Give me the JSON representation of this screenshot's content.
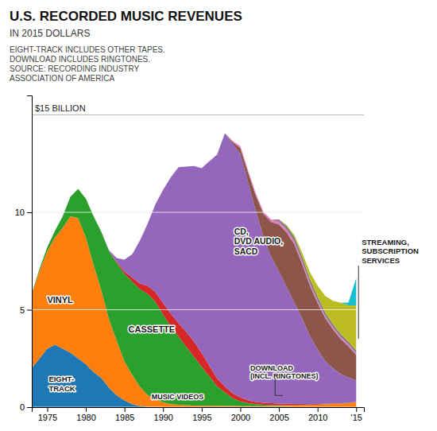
{
  "chart_data": {
    "type": "area",
    "stacked": true,
    "title": "U.S. RECORDED MUSIC REVENUES",
    "subtitle": "IN 2015 DOLLARS",
    "footnote": "EIGHT-TRACK INCLUDES OTHER TAPES.\nDOWNLOAD INCLUDES RINGTONES.\nSOURCE: RECORDING INDUSTRY\nASSOCIATION OF AMERICA",
    "x": [
      1973,
      1974,
      1975,
      1976,
      1977,
      1978,
      1979,
      1980,
      1981,
      1982,
      1983,
      1984,
      1985,
      1986,
      1987,
      1988,
      1989,
      1990,
      1991,
      1992,
      1993,
      1994,
      1995,
      1996,
      1997,
      1998,
      1999,
      2000,
      2001,
      2002,
      2003,
      2004,
      2005,
      2006,
      2007,
      2008,
      2009,
      2010,
      2011,
      2012,
      2013,
      2014,
      2015
    ],
    "xlim": [
      1973,
      2016
    ],
    "xticks": [
      1975,
      1980,
      1985,
      1990,
      1995,
      2000,
      2005,
      2010,
      {
        "value": 2015,
        "label": "'15"
      }
    ],
    "ylim": [
      0,
      16
    ],
    "yticks": [
      0,
      5,
      10
    ],
    "grid": true,
    "series": [
      {
        "values": [
          2.0,
          2.5,
          3.0,
          3.2,
          3.0,
          2.8,
          2.5,
          2.2,
          1.8,
          1.5,
          1.0,
          0.6,
          0.35,
          0.15,
          0.05,
          0.02,
          0.01,
          0.0,
          0.0,
          0.0,
          0.0,
          0.0,
          0.0,
          0.0,
          0.0,
          0.0,
          0.0,
          0.0,
          0.0,
          0.0,
          0.0,
          0.0,
          0.0,
          0.0,
          0.0,
          0.0,
          0.0,
          0.0,
          0.0,
          0.0,
          0.0,
          0.0,
          0.0
        ]
      },
      {
        "values": [
          3.8,
          4.5,
          5.0,
          5.5,
          6.2,
          7.0,
          7.2,
          6.5,
          5.5,
          4.5,
          3.5,
          2.8,
          2.0,
          1.5,
          1.0,
          0.6,
          0.4,
          0.25,
          0.15,
          0.12,
          0.1,
          0.08,
          0.07,
          0.07,
          0.07,
          0.06,
          0.06,
          0.05,
          0.05,
          0.05,
          0.05,
          0.06,
          0.06,
          0.07,
          0.08,
          0.1,
          0.1,
          0.12,
          0.14,
          0.16,
          0.18,
          0.2,
          0.26
        ]
      },
      {
        "values": [
          0.05,
          0.1,
          0.2,
          0.35,
          0.6,
          1.0,
          1.5,
          2.0,
          2.5,
          3.0,
          3.5,
          4.0,
          4.5,
          4.8,
          5.0,
          5.2,
          5.0,
          4.5,
          4.0,
          3.5,
          3.0,
          2.5,
          2.0,
          1.5,
          1.0,
          0.7,
          0.4,
          0.25,
          0.15,
          0.1,
          0.07,
          0.05,
          0.04,
          0.03,
          0.02,
          0.01,
          0.01,
          0.01,
          0.01,
          0.01,
          0.01,
          0.01,
          0.01
        ]
      },
      {
        "values": [
          0.0,
          0.0,
          0.0,
          0.0,
          0.0,
          0.0,
          0.0,
          0.0,
          0.0,
          0.0,
          0.0,
          0.05,
          0.12,
          0.2,
          0.3,
          0.4,
          0.5,
          0.6,
          0.65,
          0.7,
          0.75,
          0.8,
          0.7,
          0.55,
          0.4,
          0.3,
          0.25,
          0.2,
          0.15,
          0.12,
          0.1,
          0.09,
          0.08,
          0.07,
          0.06,
          0.05,
          0.04,
          0.03,
          0.02,
          0.02,
          0.01,
          0.01,
          0.01
        ]
      },
      {
        "values": [
          0.0,
          0.0,
          0.0,
          0.0,
          0.0,
          0.0,
          0.0,
          0.0,
          0.0,
          0.0,
          0.05,
          0.2,
          0.6,
          1.2,
          2.2,
          3.2,
          4.5,
          5.8,
          7.0,
          8.0,
          8.5,
          9.0,
          9.5,
          10.5,
          11.5,
          13.0,
          12.8,
          12.5,
          11.2,
          9.8,
          8.5,
          7.5,
          6.8,
          6.0,
          5.2,
          4.4,
          3.5,
          2.8,
          2.2,
          1.8,
          1.5,
          1.3,
          1.1
        ]
      },
      {
        "values": [
          0.0,
          0.0,
          0.0,
          0.0,
          0.0,
          0.0,
          0.0,
          0.0,
          0.0,
          0.0,
          0.0,
          0.0,
          0.0,
          0.0,
          0.0,
          0.0,
          0.0,
          0.0,
          0.0,
          0.0,
          0.0,
          0.0,
          0.0,
          0.0,
          0.0,
          0.0,
          0.1,
          0.3,
          0.5,
          0.8,
          1.2,
          1.8,
          2.4,
          2.8,
          3.0,
          2.8,
          2.6,
          2.4,
          2.2,
          2.0,
          1.8,
          1.6,
          1.3
        ]
      },
      {
        "values": [
          0.0,
          0.0,
          0.0,
          0.0,
          0.0,
          0.0,
          0.0,
          0.0,
          0.0,
          0.0,
          0.0,
          0.0,
          0.0,
          0.0,
          0.0,
          0.0,
          0.0,
          0.0,
          0.0,
          0.0,
          0.0,
          0.0,
          0.0,
          0.0,
          0.0,
          0.0,
          0.05,
          0.1,
          0.1,
          0.1,
          0.1,
          0.12,
          0.15,
          0.15,
          0.15,
          0.15,
          0.12,
          0.12,
          0.1,
          0.1,
          0.1,
          0.1,
          0.1
        ]
      },
      {
        "values": [
          0.0,
          0.0,
          0.0,
          0.0,
          0.0,
          0.0,
          0.0,
          0.0,
          0.0,
          0.0,
          0.0,
          0.0,
          0.0,
          0.0,
          0.0,
          0.0,
          0.0,
          0.0,
          0.0,
          0.0,
          0.0,
          0.0,
          0.0,
          0.0,
          0.0,
          0.0,
          0.0,
          0.0,
          0.0,
          0.0,
          0.0,
          0.0,
          0.1,
          0.18,
          0.22,
          0.22,
          0.22,
          0.2,
          0.18,
          0.17,
          0.16,
          0.15,
          0.14
        ]
      },
      {
        "values": [
          0.0,
          0.0,
          0.0,
          0.0,
          0.0,
          0.0,
          0.0,
          0.0,
          0.0,
          0.0,
          0.0,
          0.0,
          0.0,
          0.0,
          0.0,
          0.0,
          0.0,
          0.0,
          0.0,
          0.0,
          0.0,
          0.0,
          0.0,
          0.0,
          0.0,
          0.0,
          0.0,
          0.0,
          0.0,
          0.0,
          0.0,
          0.0,
          0.0,
          0.05,
          0.1,
          0.2,
          0.35,
          0.55,
          0.85,
          1.2,
          1.6,
          1.85,
          2.3
        ]
      },
      {
        "values": [
          0.0,
          0.0,
          0.0,
          0.0,
          0.0,
          0.0,
          0.0,
          0.0,
          0.0,
          0.0,
          0.0,
          0.0,
          0.0,
          0.0,
          0.0,
          0.0,
          0.0,
          0.0,
          0.0,
          0.0,
          0.0,
          0.0,
          0.0,
          0.0,
          0.0,
          0.0,
          0.0,
          0.0,
          0.0,
          0.0,
          0.0,
          0.0,
          0.0,
          0.0,
          0.0,
          0.0,
          0.0,
          0.0,
          0.0,
          0.0,
          0.0,
          0.15,
          1.4
        ]
      }
    ],
    "annotations": [
      "VINYL",
      "EIGHT-\nTRACK",
      "CASSETTE",
      "MUSIC VIDEOS",
      "CD,\nDVD AUDIO,\nSACD",
      "DOWNLOAD\n(INCL. RINGTONES)",
      "STREAMING,\nSUBSCRIPTION\nSERVICES"
    ],
    "reference_lines": [
      {
        "value": 15,
        "label": "$15 BILLION"
      }
    ]
  }
}
